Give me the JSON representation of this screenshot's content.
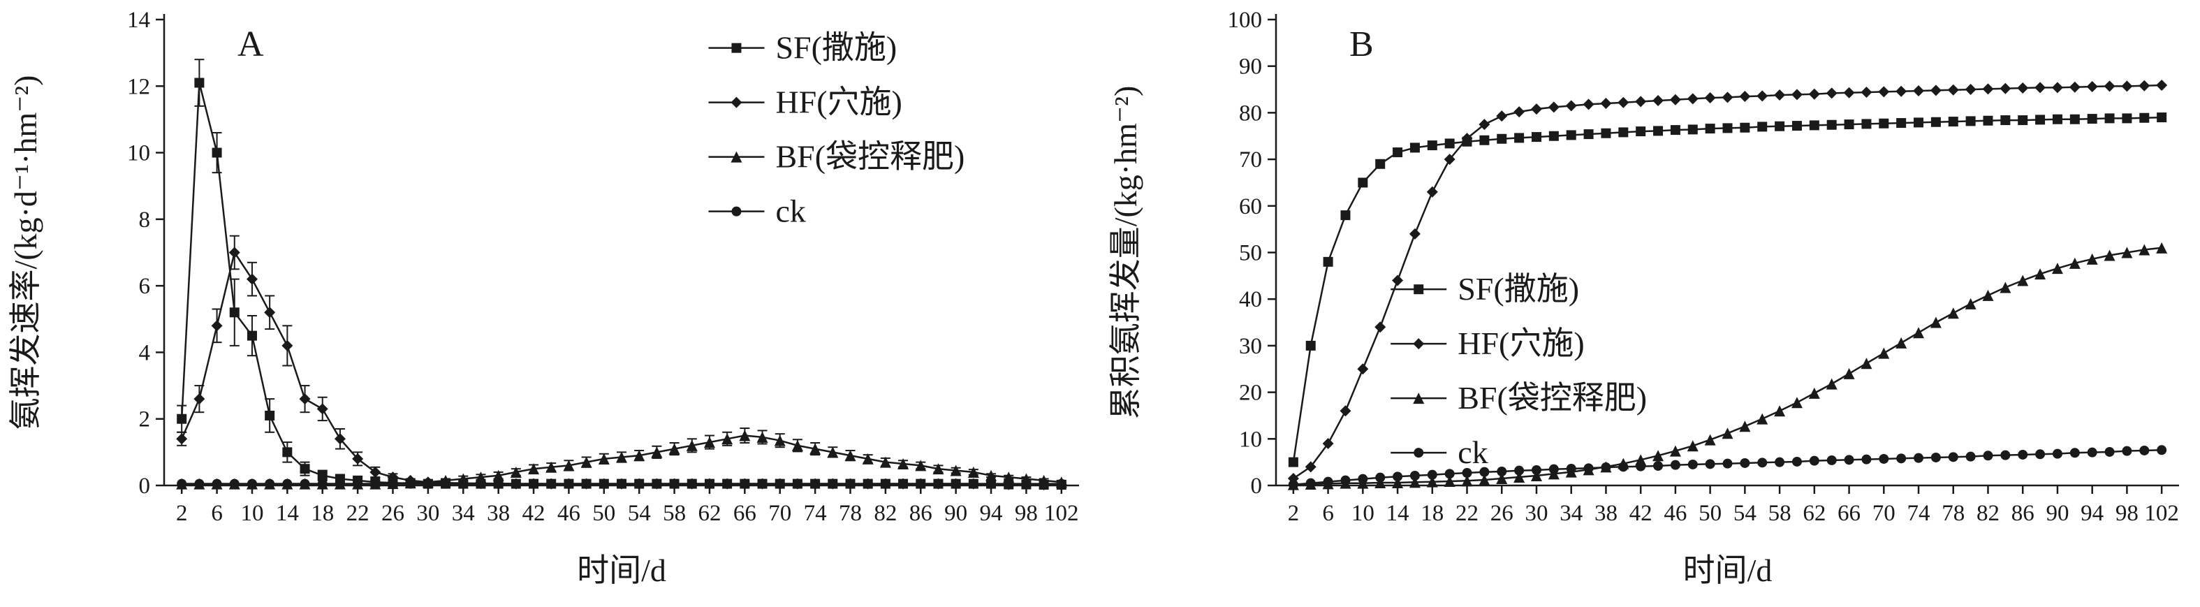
{
  "figure": {
    "background": "#ffffff",
    "line_color": "#1a1a1a",
    "panels": [
      "A",
      "B"
    ]
  },
  "chart_data": [
    {
      "type": "line",
      "panel_label": "A",
      "title": "",
      "xlabel": "时间/d",
      "ylabel": "氨挥发速率/(kg·d⁻¹·hm⁻²)",
      "ylim": [
        0,
        14
      ],
      "y_ticks": [
        0,
        2,
        4,
        6,
        8,
        10,
        12,
        14
      ],
      "x_ticks": [
        2,
        6,
        10,
        14,
        18,
        22,
        26,
        30,
        34,
        38,
        42,
        46,
        50,
        54,
        58,
        62,
        66,
        70,
        74,
        78,
        82,
        86,
        90,
        94,
        98,
        102
      ],
      "x": [
        2,
        4,
        6,
        8,
        10,
        12,
        14,
        16,
        18,
        20,
        22,
        24,
        26,
        28,
        30,
        32,
        34,
        36,
        38,
        40,
        42,
        44,
        46,
        48,
        50,
        52,
        54,
        56,
        58,
        60,
        62,
        64,
        66,
        68,
        70,
        72,
        74,
        76,
        78,
        80,
        82,
        84,
        86,
        88,
        90,
        92,
        94,
        96,
        98,
        100,
        102
      ],
      "legend_position": "inside-upper-right",
      "grid": false,
      "series": [
        {
          "id": "sf",
          "name": "SF(撒施)",
          "marker": "square",
          "values": [
            2,
            12.1,
            10,
            5.2,
            4.5,
            2.1,
            1,
            0.5,
            0.3,
            0.2,
            0.15,
            0.1,
            0.08,
            0.06,
            0.05,
            0.05,
            0.05,
            0.05,
            0.05,
            0.05,
            0.05,
            0.05,
            0.05,
            0.05,
            0.05,
            0.05,
            0.05,
            0.05,
            0.05,
            0.05,
            0.05,
            0.05,
            0.05,
            0.05,
            0.05,
            0.05,
            0.05,
            0.05,
            0.05,
            0.05,
            0.05,
            0.05,
            0.05,
            0.05,
            0.05,
            0.05,
            0.05,
            0.03,
            0.03,
            0.02,
            0.02
          ],
          "errors": [
            0.4,
            0.7,
            0.6,
            1.0,
            0.6,
            0.5,
            0.3,
            0.2,
            0.15,
            0.1,
            0.1,
            0.05,
            0,
            0,
            0,
            0,
            0,
            0,
            0,
            0,
            0,
            0,
            0,
            0,
            0,
            0,
            0,
            0,
            0,
            0,
            0,
            0,
            0,
            0,
            0,
            0,
            0,
            0,
            0,
            0,
            0,
            0,
            0,
            0,
            0,
            0,
            0,
            0,
            0,
            0,
            0
          ]
        },
        {
          "id": "hf",
          "name": "HF(穴施)",
          "marker": "diamond",
          "values": [
            1.4,
            2.6,
            4.8,
            7,
            6.2,
            5.2,
            4.2,
            2.6,
            2.3,
            1.4,
            0.8,
            0.4,
            0.25,
            0.15,
            0.1,
            0.08,
            0.07,
            0.06,
            0.06,
            0.05,
            0.05,
            0.05,
            0.05,
            0.05,
            0.05,
            0.05,
            0.05,
            0.05,
            0.05,
            0.05,
            0.05,
            0.05,
            0.05,
            0.05,
            0.05,
            0.05,
            0.05,
            0.05,
            0.05,
            0.05,
            0.05,
            0.05,
            0.05,
            0.05,
            0.05,
            0.05,
            0.04,
            0.03,
            0.03,
            0.02,
            0.02
          ],
          "errors": [
            0.2,
            0.4,
            0.5,
            0.5,
            0.5,
            0.5,
            0.6,
            0.4,
            0.35,
            0.3,
            0.2,
            0.15,
            0.1,
            0.05,
            0,
            0,
            0,
            0,
            0,
            0,
            0,
            0,
            0,
            0,
            0,
            0,
            0,
            0,
            0,
            0,
            0,
            0,
            0,
            0,
            0,
            0,
            0,
            0,
            0,
            0,
            0,
            0,
            0,
            0,
            0,
            0,
            0,
            0,
            0,
            0,
            0
          ]
        },
        {
          "id": "bf",
          "name": "BF(袋控释肥)",
          "marker": "triangle",
          "values": [
            0.05,
            0.05,
            0.05,
            0.05,
            0.05,
            0.05,
            0.05,
            0.05,
            0.05,
            0.05,
            0.05,
            0.05,
            0.06,
            0.08,
            0.1,
            0.15,
            0.2,
            0.25,
            0.3,
            0.4,
            0.5,
            0.55,
            0.6,
            0.7,
            0.8,
            0.85,
            0.9,
            1,
            1.1,
            1.2,
            1.3,
            1.4,
            1.5,
            1.45,
            1.35,
            1.2,
            1.1,
            1,
            0.9,
            0.8,
            0.7,
            0.65,
            0.6,
            0.5,
            0.45,
            0.4,
            0.3,
            0.25,
            0.2,
            0.15,
            0.1
          ],
          "errors": [
            0,
            0,
            0,
            0,
            0,
            0,
            0,
            0,
            0,
            0,
            0,
            0,
            0,
            0,
            0.05,
            0.05,
            0.08,
            0.08,
            0.1,
            0.1,
            0.12,
            0.12,
            0.15,
            0.15,
            0.15,
            0.15,
            0.15,
            0.18,
            0.18,
            0.2,
            0.2,
            0.2,
            0.22,
            0.2,
            0.2,
            0.18,
            0.18,
            0.15,
            0.15,
            0.12,
            0.12,
            0.1,
            0.1,
            0.1,
            0.08,
            0.08,
            0.05,
            0.05,
            0.05,
            0.05,
            0.05
          ]
        },
        {
          "id": "ck",
          "name": "ck",
          "marker": "circle",
          "values": [
            0.05,
            0.05,
            0.05,
            0.05,
            0.05,
            0.05,
            0.05,
            0.05,
            0.05,
            0.05,
            0.05,
            0.05,
            0.05,
            0.05,
            0.05,
            0.05,
            0.05,
            0.05,
            0.05,
            0.05,
            0.05,
            0.05,
            0.05,
            0.05,
            0.05,
            0.05,
            0.05,
            0.05,
            0.05,
            0.05,
            0.05,
            0.05,
            0.05,
            0.05,
            0.05,
            0.05,
            0.05,
            0.05,
            0.05,
            0.05,
            0.05,
            0.05,
            0.05,
            0.05,
            0.05,
            0.05,
            0.05,
            0.05,
            0.05,
            0.05,
            0.05
          ]
        }
      ]
    },
    {
      "type": "line",
      "panel_label": "B",
      "title": "",
      "xlabel": "时间/d",
      "ylabel": "累积氨挥发量/(kg·hm⁻²)",
      "ylim": [
        0,
        100
      ],
      "y_ticks": [
        0,
        10,
        20,
        30,
        40,
        50,
        60,
        70,
        80,
        90,
        100
      ],
      "x_ticks": [
        2,
        6,
        10,
        14,
        18,
        22,
        26,
        30,
        34,
        38,
        42,
        46,
        50,
        54,
        58,
        62,
        66,
        70,
        74,
        78,
        82,
        86,
        90,
        94,
        98,
        102
      ],
      "x": [
        2,
        4,
        6,
        8,
        10,
        12,
        14,
        16,
        18,
        20,
        22,
        24,
        26,
        28,
        30,
        32,
        34,
        36,
        38,
        40,
        42,
        44,
        46,
        48,
        50,
        52,
        54,
        56,
        58,
        60,
        62,
        64,
        66,
        68,
        70,
        72,
        74,
        76,
        78,
        80,
        82,
        84,
        86,
        88,
        90,
        92,
        94,
        96,
        98,
        100,
        102
      ],
      "legend_position": "inside-center-left",
      "grid": false,
      "series": [
        {
          "id": "sf",
          "name": "SF(撒施)",
          "marker": "square",
          "values": [
            5,
            30,
            48,
            58,
            65,
            69,
            71.5,
            72.5,
            73,
            73.4,
            73.8,
            74.1,
            74.4,
            74.6,
            74.8,
            75,
            75.2,
            75.4,
            75.6,
            75.8,
            76,
            76.1,
            76.3,
            76.4,
            76.6,
            76.7,
            76.8,
            77,
            77.1,
            77.2,
            77.3,
            77.4,
            77.5,
            77.6,
            77.7,
            77.8,
            77.9,
            78,
            78.1,
            78.2,
            78.3,
            78.4,
            78.4,
            78.5,
            78.6,
            78.6,
            78.7,
            78.8,
            78.8,
            78.9,
            79
          ]
        },
        {
          "id": "hf",
          "name": "HF(穴施)",
          "marker": "diamond",
          "values": [
            1.5,
            4,
            9,
            16,
            25,
            34,
            44,
            54,
            63,
            70,
            74.5,
            77.5,
            79.3,
            80.2,
            80.8,
            81.2,
            81.5,
            81.8,
            82,
            82.2,
            82.4,
            82.6,
            82.8,
            83,
            83.2,
            83.3,
            83.5,
            83.6,
            83.8,
            83.9,
            84,
            84.2,
            84.3,
            84.4,
            84.5,
            84.6,
            84.7,
            84.8,
            84.9,
            85,
            85.1,
            85.2,
            85.3,
            85.4,
            85.4,
            85.5,
            85.6,
            85.7,
            85.7,
            85.8,
            85.9
          ]
        },
        {
          "id": "bf",
          "name": "BF(袋控释肥)",
          "marker": "triangle",
          "values": [
            0.2,
            0.3,
            0.4,
            0.5,
            0.5,
            0.6,
            0.6,
            0.7,
            0.8,
            0.9,
            1,
            1.2,
            1.5,
            1.8,
            2.1,
            2.5,
            2.9,
            3.4,
            4,
            4.7,
            5.5,
            6.4,
            7.4,
            8.5,
            9.8,
            11.2,
            12.7,
            14.3,
            16,
            17.8,
            19.8,
            21.8,
            24,
            26.2,
            28.4,
            30.6,
            32.8,
            35,
            37,
            39,
            40.8,
            42.5,
            44,
            45.4,
            46.6,
            47.7,
            48.6,
            49.4,
            50,
            50.6,
            51
          ]
        },
        {
          "id": "ck",
          "name": "ck",
          "marker": "circle",
          "values": [
            0.2,
            0.5,
            0.8,
            1.1,
            1.4,
            1.7,
            1.9,
            2.1,
            2.3,
            2.5,
            2.7,
            2.9,
            3,
            3.2,
            3.3,
            3.5,
            3.6,
            3.7,
            3.9,
            4,
            4.1,
            4.2,
            4.4,
            4.5,
            4.6,
            4.7,
            4.8,
            4.9,
            5,
            5.1,
            5.3,
            5.4,
            5.5,
            5.6,
            5.7,
            5.8,
            5.9,
            6,
            6.1,
            6.2,
            6.4,
            6.5,
            6.6,
            6.7,
            6.8,
            7,
            7.1,
            7.2,
            7.4,
            7.5,
            7.6
          ]
        }
      ]
    }
  ]
}
